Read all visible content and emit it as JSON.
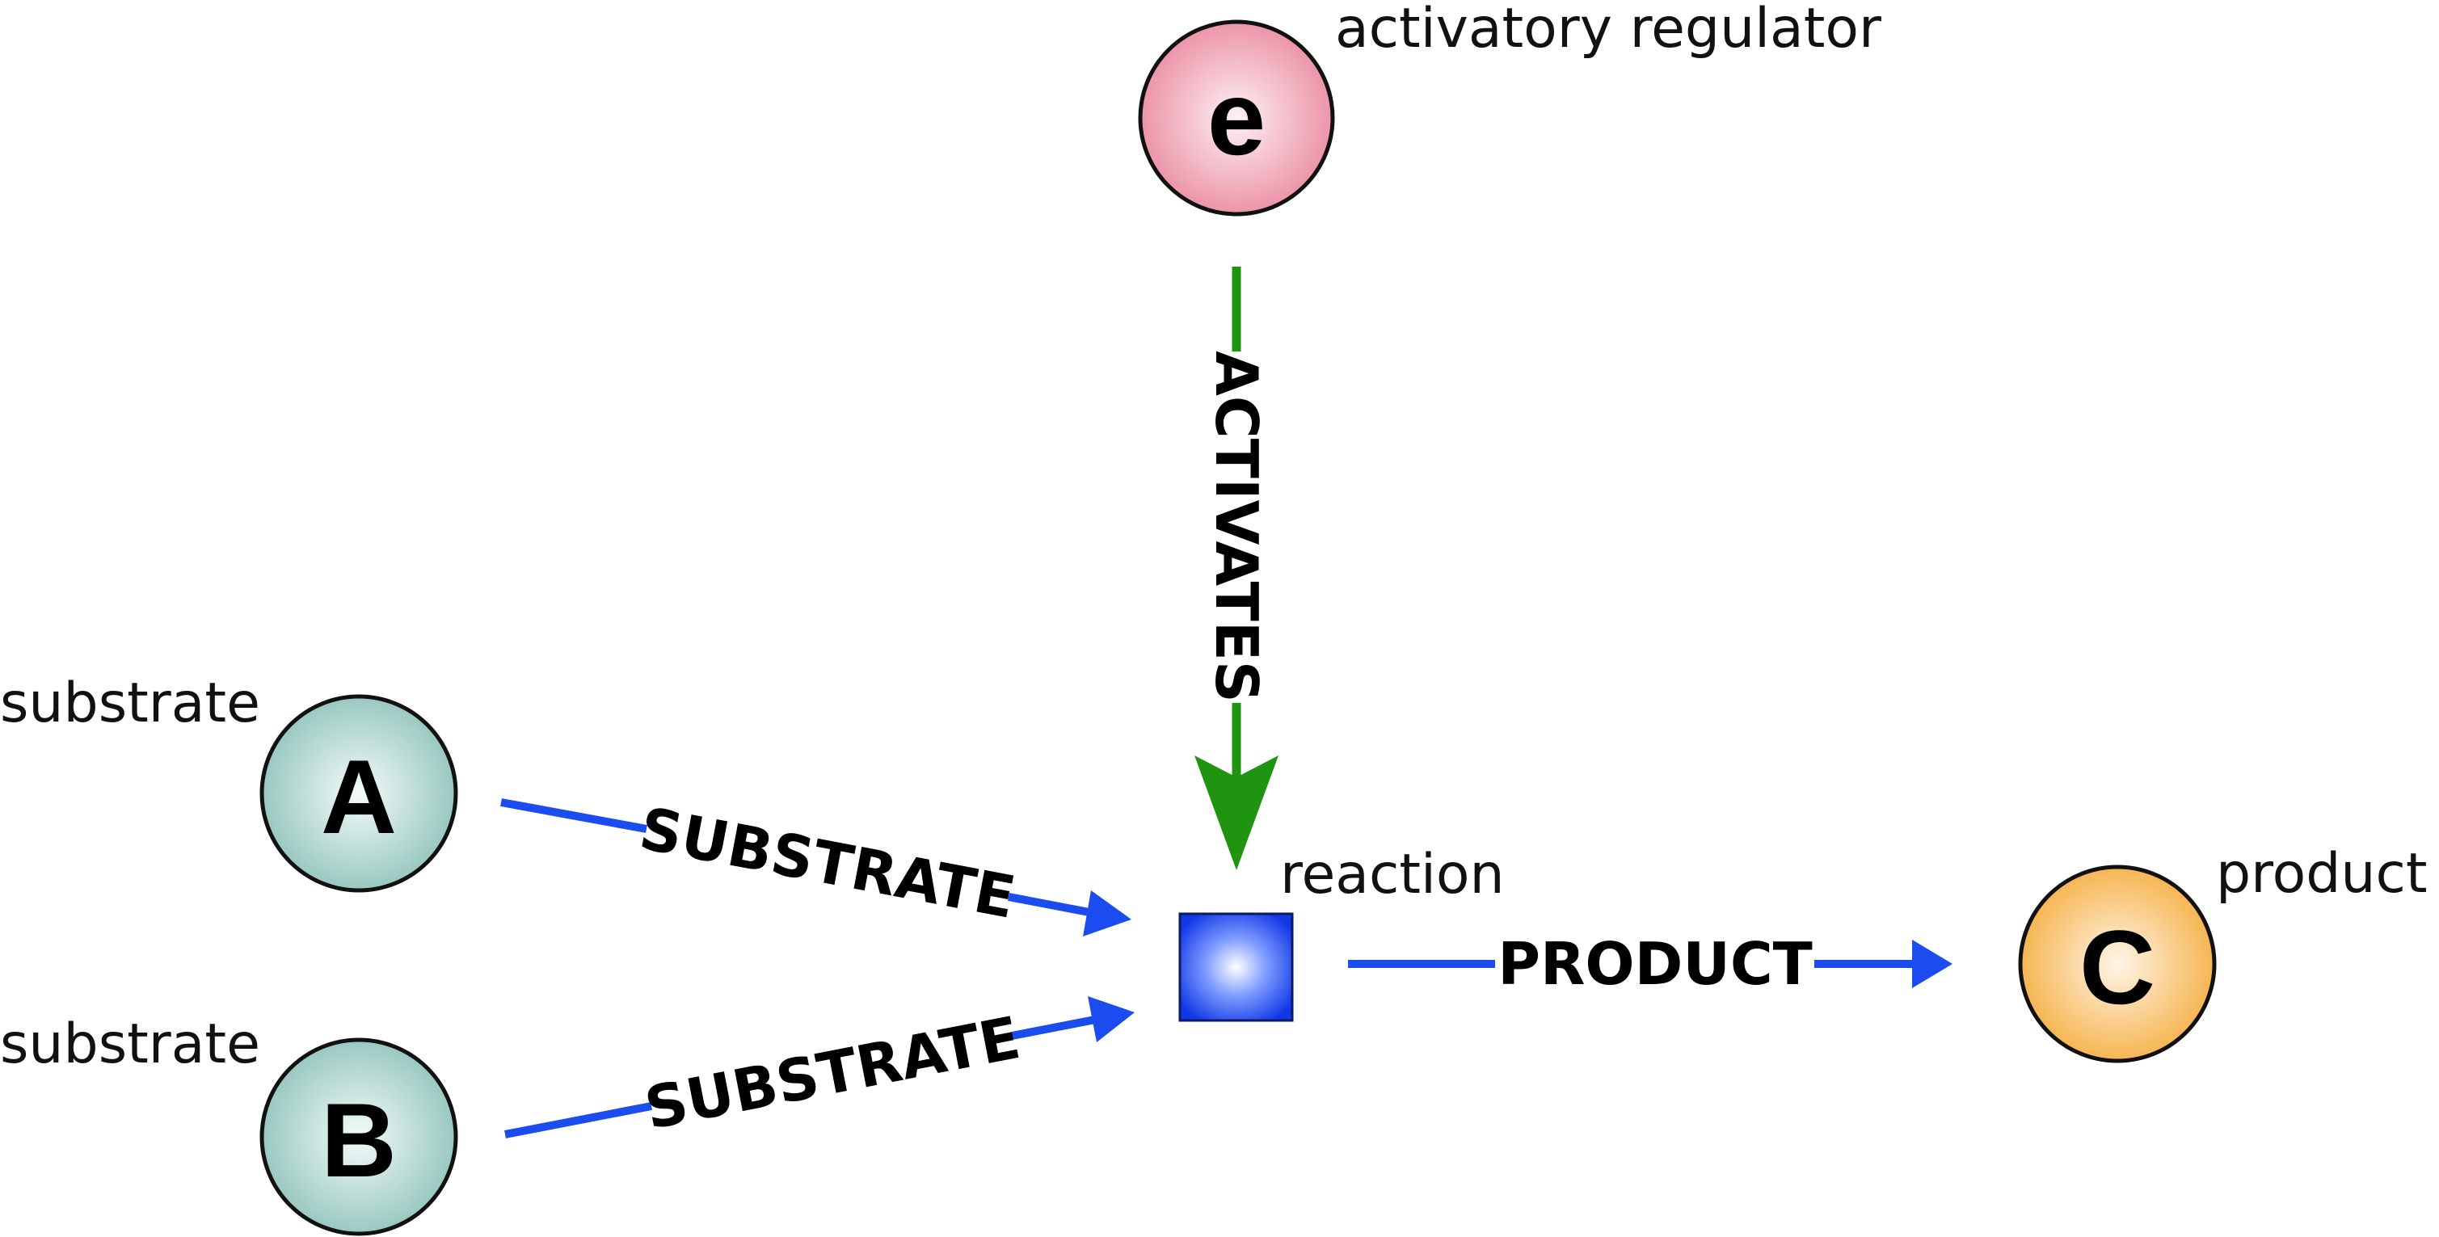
{
  "nodes": {
    "e": {
      "letter": "e",
      "caption": "activatory regulator"
    },
    "a": {
      "letter": "A",
      "caption": "substrate"
    },
    "b": {
      "letter": "B",
      "caption": "substrate"
    },
    "c": {
      "letter": "C",
      "caption": "product"
    },
    "reaction": {
      "caption": "reaction"
    }
  },
  "edges": {
    "activates": {
      "label": "ACTIVATES"
    },
    "substrate_a": {
      "label": "SUBSTRATE"
    },
    "substrate_b": {
      "label": "SUBSTRATE"
    },
    "product": {
      "label": "PRODUCT"
    }
  },
  "colors": {
    "substrate_node": "#99c8c0",
    "regulator_node": "#ec94a8",
    "product_node": "#f6b552",
    "reaction_node": "#1848ee",
    "substrate_edge": "#1a4cf0",
    "activation_edge": "#1e9410"
  }
}
